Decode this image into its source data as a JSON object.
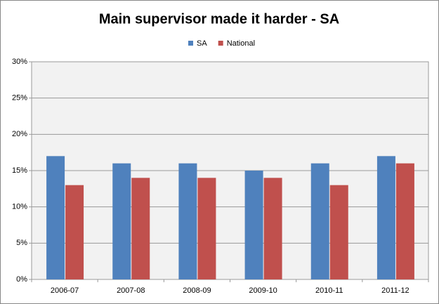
{
  "chart_data": {
    "type": "bar",
    "title": "Main supervisor made it harder - SA",
    "categories": [
      "2006-07",
      "2007-08",
      "2008-09",
      "2009-10",
      "2010-11",
      "2011-12"
    ],
    "series": [
      {
        "name": "SA",
        "color": "#4f81bd",
        "values": [
          17,
          16,
          16,
          15,
          16,
          17
        ]
      },
      {
        "name": "National",
        "color": "#c0504d",
        "values": [
          13,
          14,
          14,
          14,
          13,
          16
        ]
      }
    ],
    "ylim": [
      0,
      30
    ],
    "yticks": [
      {
        "value": 0,
        "label": "0%"
      },
      {
        "value": 5,
        "label": "5%"
      },
      {
        "value": 10,
        "label": "10%"
      },
      {
        "value": 15,
        "label": "15%"
      },
      {
        "value": 20,
        "label": "20%"
      },
      {
        "value": 25,
        "label": "25%"
      },
      {
        "value": 30,
        "label": "30%"
      }
    ],
    "grid": true,
    "legend": "top"
  }
}
